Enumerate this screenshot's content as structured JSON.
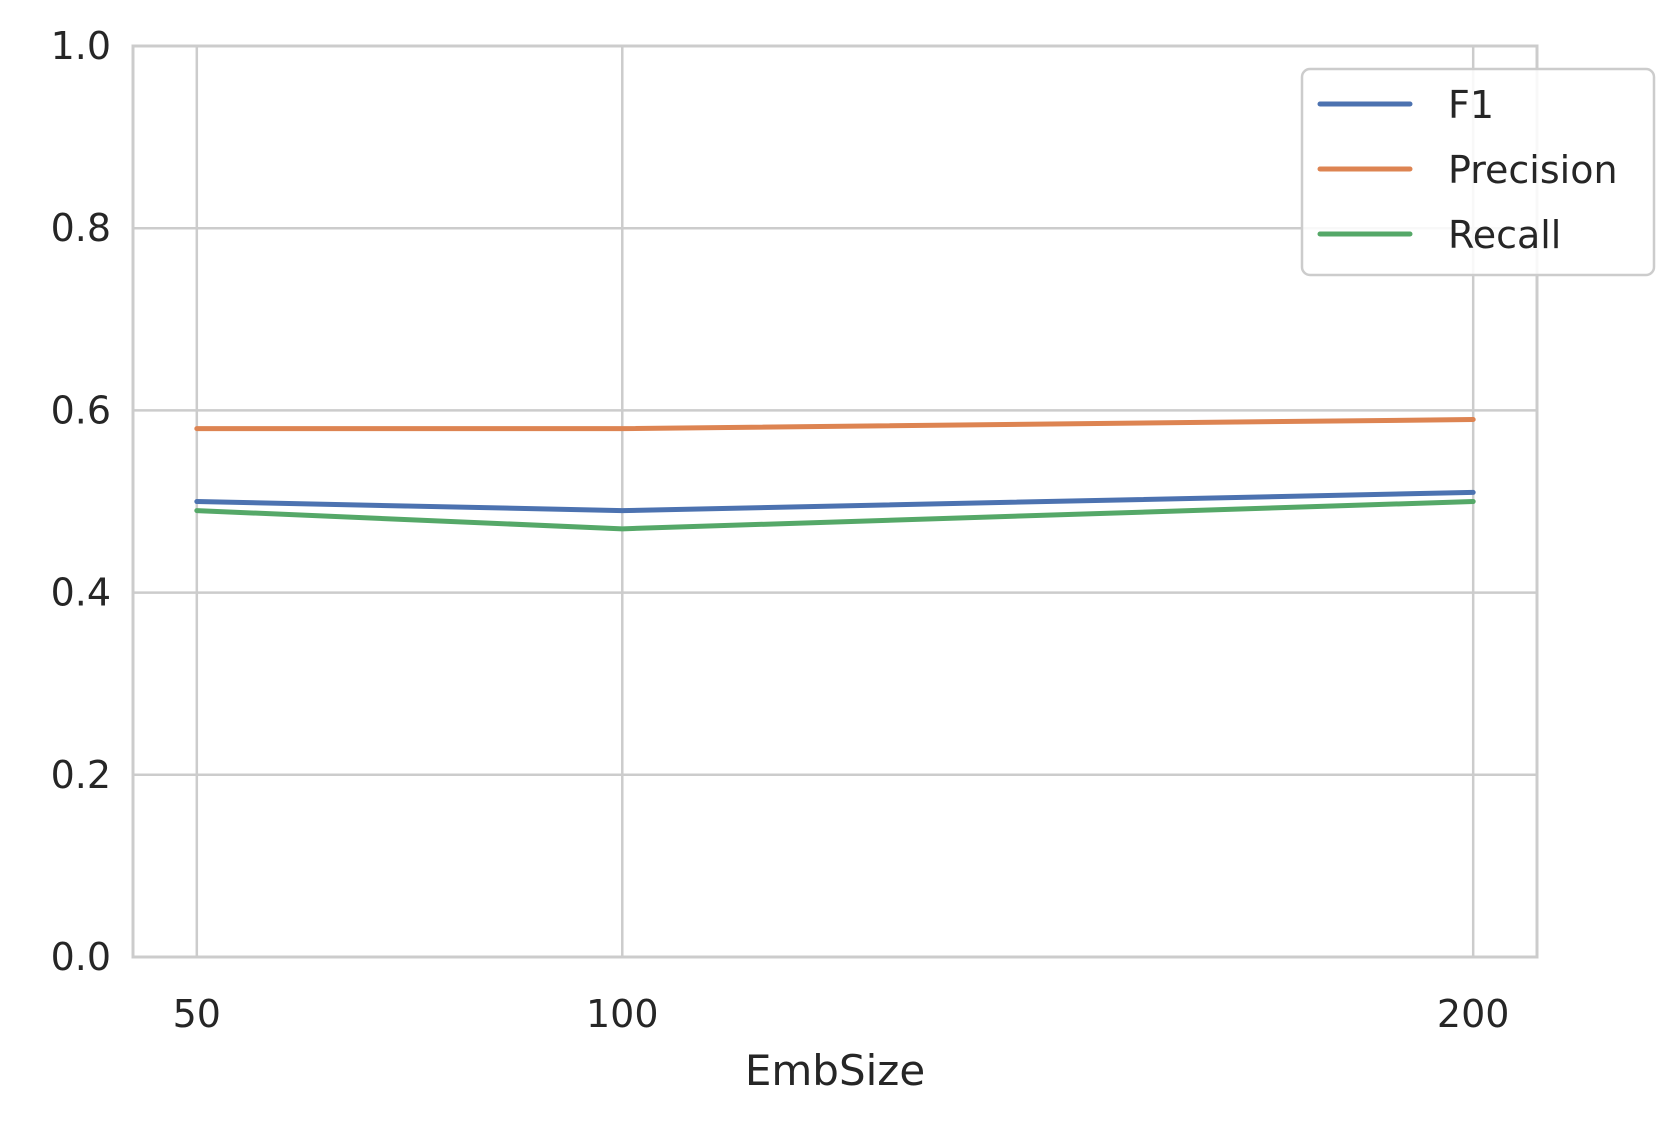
{
  "chart_data": {
    "type": "line",
    "title": "",
    "xlabel": "EmbSize",
    "ylabel": "",
    "x": [
      50,
      100,
      200
    ],
    "x_ticks": [
      "50",
      "100",
      "200"
    ],
    "xlim": [
      42.5,
      207.5
    ],
    "ylim": [
      0.0,
      1.0
    ],
    "y_ticks": [
      "0.0",
      "0.2",
      "0.4",
      "0.6",
      "0.8",
      "1.0"
    ],
    "grid": true,
    "legend_position": "top-right",
    "series": [
      {
        "name": "F1",
        "color": "#4c72b0",
        "values": [
          0.5,
          0.49,
          0.51
        ]
      },
      {
        "name": "Precision",
        "color": "#dd8452",
        "values": [
          0.58,
          0.58,
          0.59
        ]
      },
      {
        "name": "Recall",
        "color": "#55a868",
        "values": [
          0.49,
          0.47,
          0.5
        ]
      }
    ]
  }
}
